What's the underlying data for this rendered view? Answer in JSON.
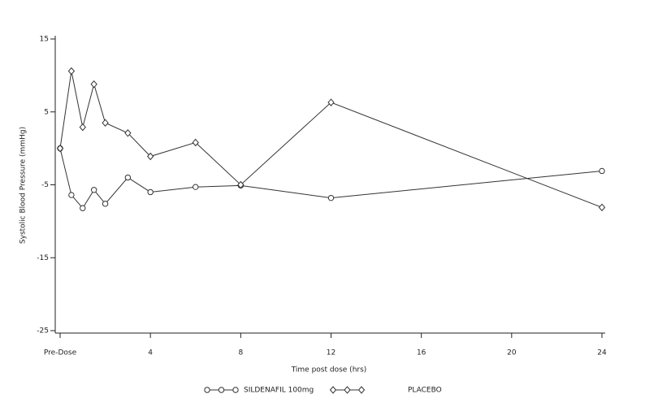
{
  "chart_data": {
    "type": "line",
    "x_label": "Time post dose (hrs)",
    "y_label": "Systolic Blood Pressure (mmHg)",
    "x": [
      0,
      0.5,
      1,
      1.5,
      2,
      3,
      4,
      6,
      8,
      12,
      24
    ],
    "series": [
      {
        "name": "SILDENAFIL 100mg",
        "color": "#333333",
        "marker": "circle",
        "values": [
          0,
          -6.4,
          -8.2,
          -5.7,
          -7.6,
          -4.0,
          -6.0,
          -5.3,
          -5.1,
          -6.8,
          -3.1
        ]
      },
      {
        "name": "PLACEBO",
        "color": "#333333",
        "marker": "diamond",
        "values": [
          0,
          10.6,
          2.9,
          8.8,
          3.5,
          2.1,
          -1.1,
          0.8,
          -5.0,
          6.3,
          -8.1
        ]
      }
    ],
    "xlim": [
      0,
      24
    ],
    "xticks": [
      {
        "value": 0,
        "label": "Pre-Dose"
      },
      4,
      8,
      12,
      16,
      20,
      24
    ],
    "ylim": [
      -25,
      15
    ],
    "yticks": [
      -25,
      -15,
      -5,
      5,
      15
    ],
    "grid": false
  }
}
